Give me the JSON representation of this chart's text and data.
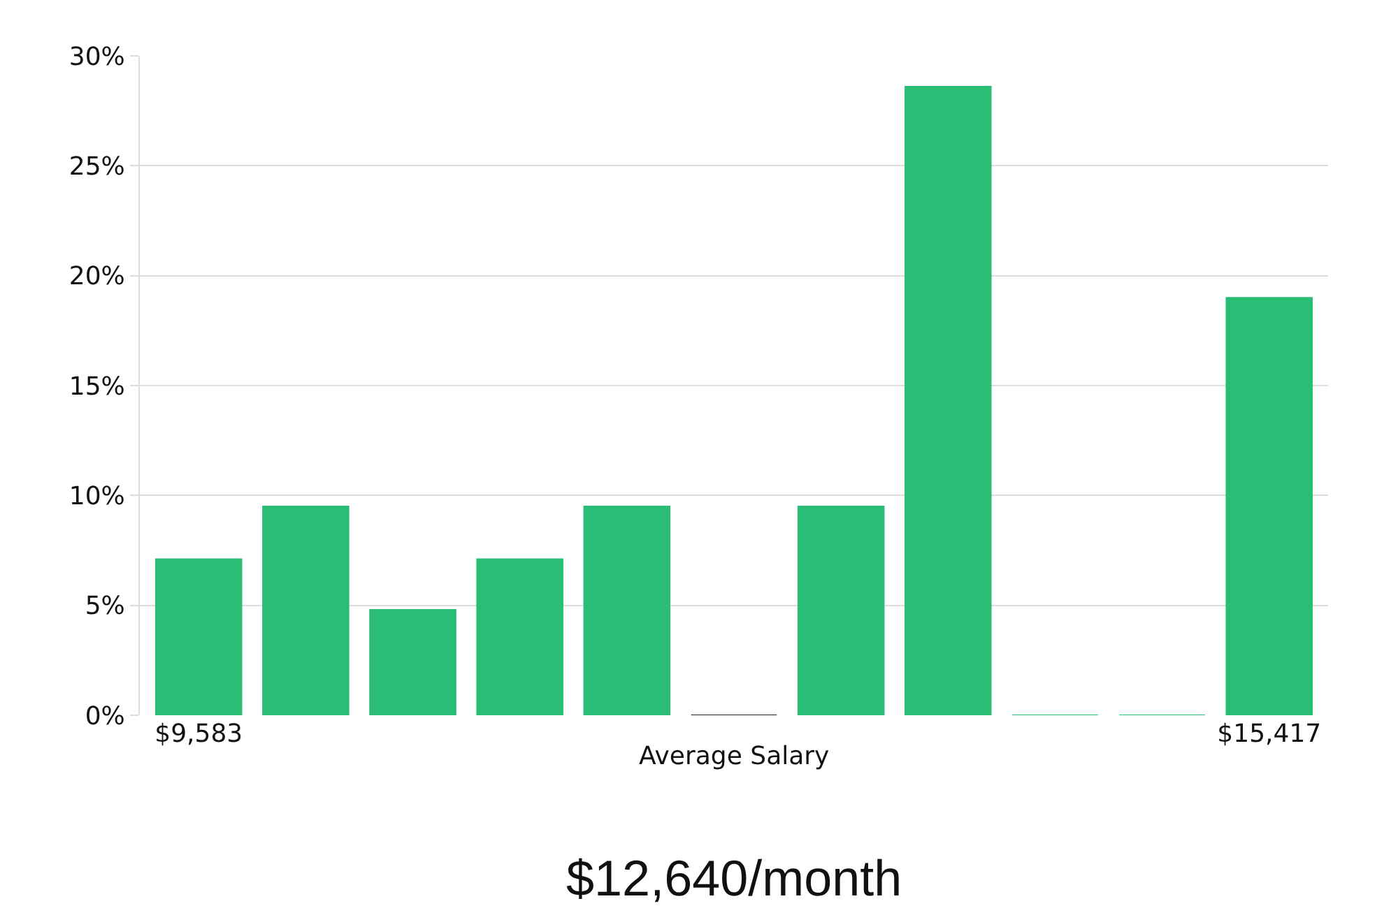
{
  "chart_data": {
    "type": "bar",
    "categories": [
      "$9,583",
      null,
      null,
      null,
      null,
      null,
      null,
      null,
      null,
      null,
      "$15,417"
    ],
    "values": [
      7.1,
      9.5,
      4.8,
      7.1,
      9.5,
      0,
      9.5,
      28.6,
      0,
      0,
      19.0
    ],
    "colors": [
      "#2abd76",
      "#2abd76",
      "#2abd76",
      "#2abd76",
      "#2abd76",
      "#222222",
      "#2abd76",
      "#2abd76",
      "#2abd76",
      "#2abd76",
      "#2abd76"
    ],
    "xlabel": "Average Salary",
    "ylim": [
      0,
      30
    ],
    "yticks": [
      {
        "value": 0,
        "label": "0%"
      },
      {
        "value": 5,
        "label": "5%"
      },
      {
        "value": 10,
        "label": "10%"
      },
      {
        "value": 15,
        "label": "15%"
      },
      {
        "value": 20,
        "label": "20%"
      },
      {
        "value": 25,
        "label": "25%"
      },
      {
        "value": 30,
        "label": "30%"
      }
    ],
    "grid": "y",
    "annotations": [
      "$12,640/month"
    ]
  }
}
